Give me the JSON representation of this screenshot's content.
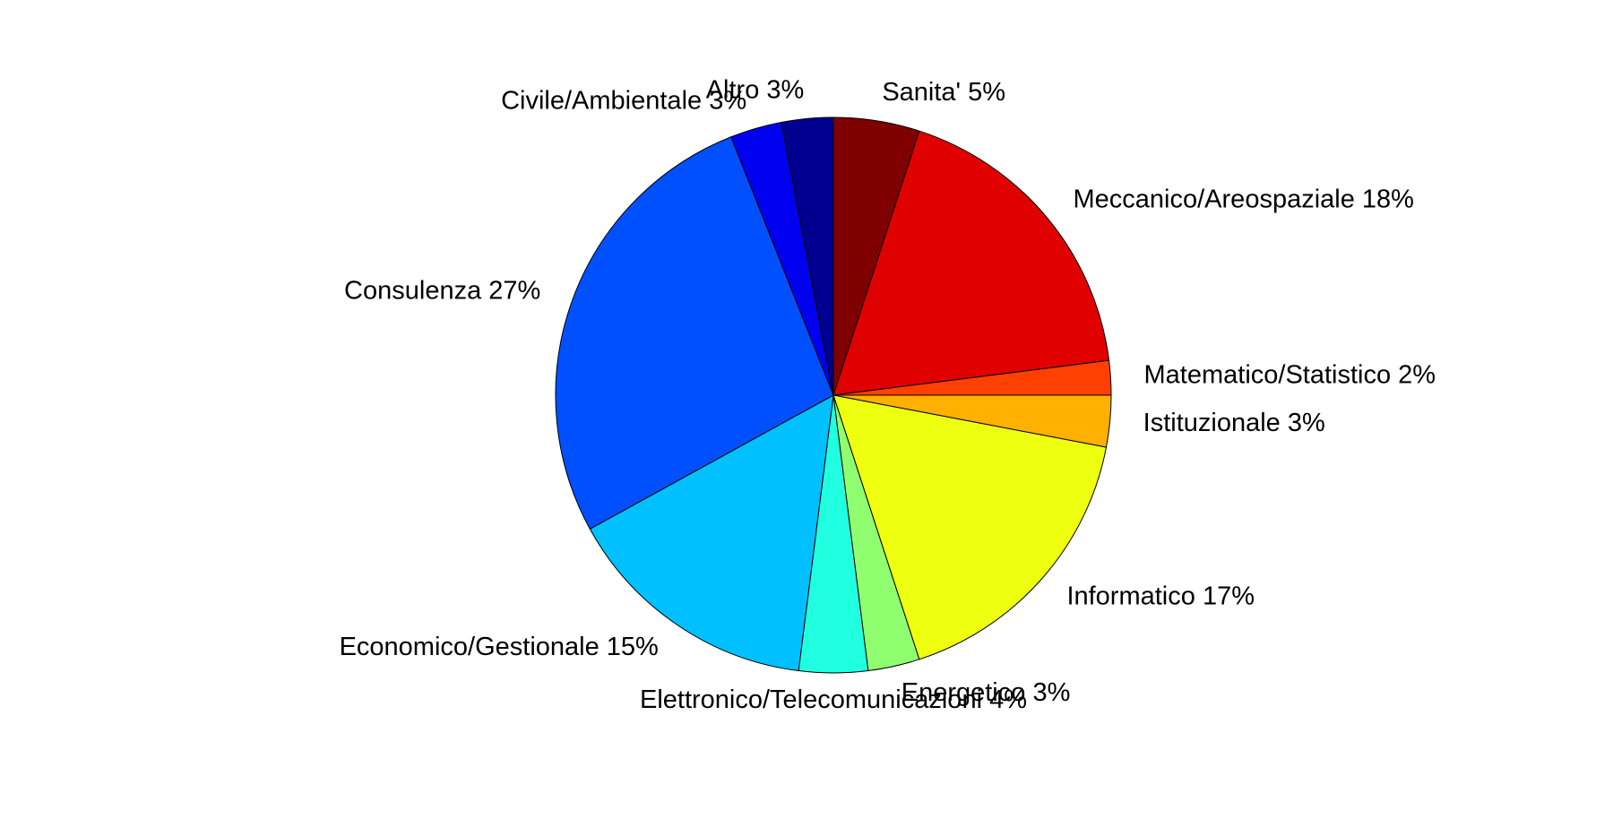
{
  "chart_data": {
    "type": "pie",
    "categories": [
      "Sanita'",
      "Meccanico/Areospaziale",
      "Matematico/Statistico",
      "Istituzionale",
      "Informatico",
      "Energetico",
      "Elettronico/Telecomunicazioni",
      "Economico/Gestionale",
      "Consulenza",
      "Civile/Ambientale",
      "Altro"
    ],
    "values": [
      5,
      18,
      2,
      3,
      17,
      3,
      4,
      15,
      27,
      3,
      3
    ],
    "value_labels": [
      "5%",
      "18%",
      "2%",
      "3%",
      "17%",
      "3%",
      "4%",
      "15%",
      "27%",
      "3%",
      "3%"
    ],
    "colors": [
      "#800000",
      "#e00000",
      "#ff4000",
      "#ffb000",
      "#eeff10",
      "#8fff70",
      "#20ffe0",
      "#00c0ff",
      "#0050ff",
      "#0000f0",
      "#000090"
    ]
  }
}
